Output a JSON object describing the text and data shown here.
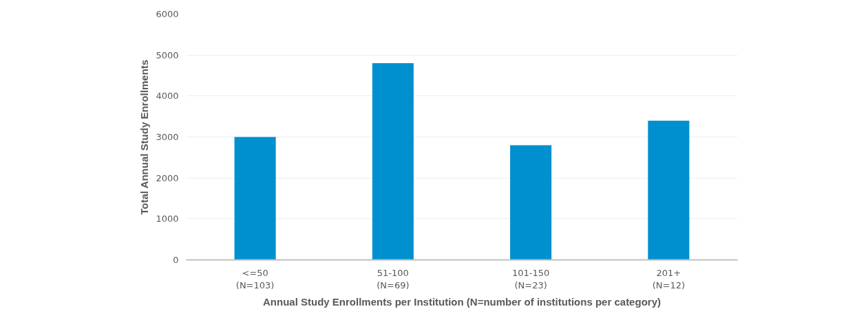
{
  "chart_data": {
    "type": "bar",
    "xlabel": "Annual Study Enrollments per Institution (N=number of institutions per category)",
    "ylabel": "Total Annual Study Enrollments",
    "categories": [
      "<=50\n(N=103)",
      "51-100\n(N=69)",
      "101-150\n(N=23)",
      "201+\n(N=12)"
    ],
    "values": [
      3000,
      4800,
      2800,
      3400
    ],
    "color": "#0090cf",
    "ylim": [
      0,
      6000
    ],
    "yticks": [
      0,
      1000,
      2000,
      3000,
      4000,
      5000,
      6000
    ],
    "grid": "y"
  }
}
